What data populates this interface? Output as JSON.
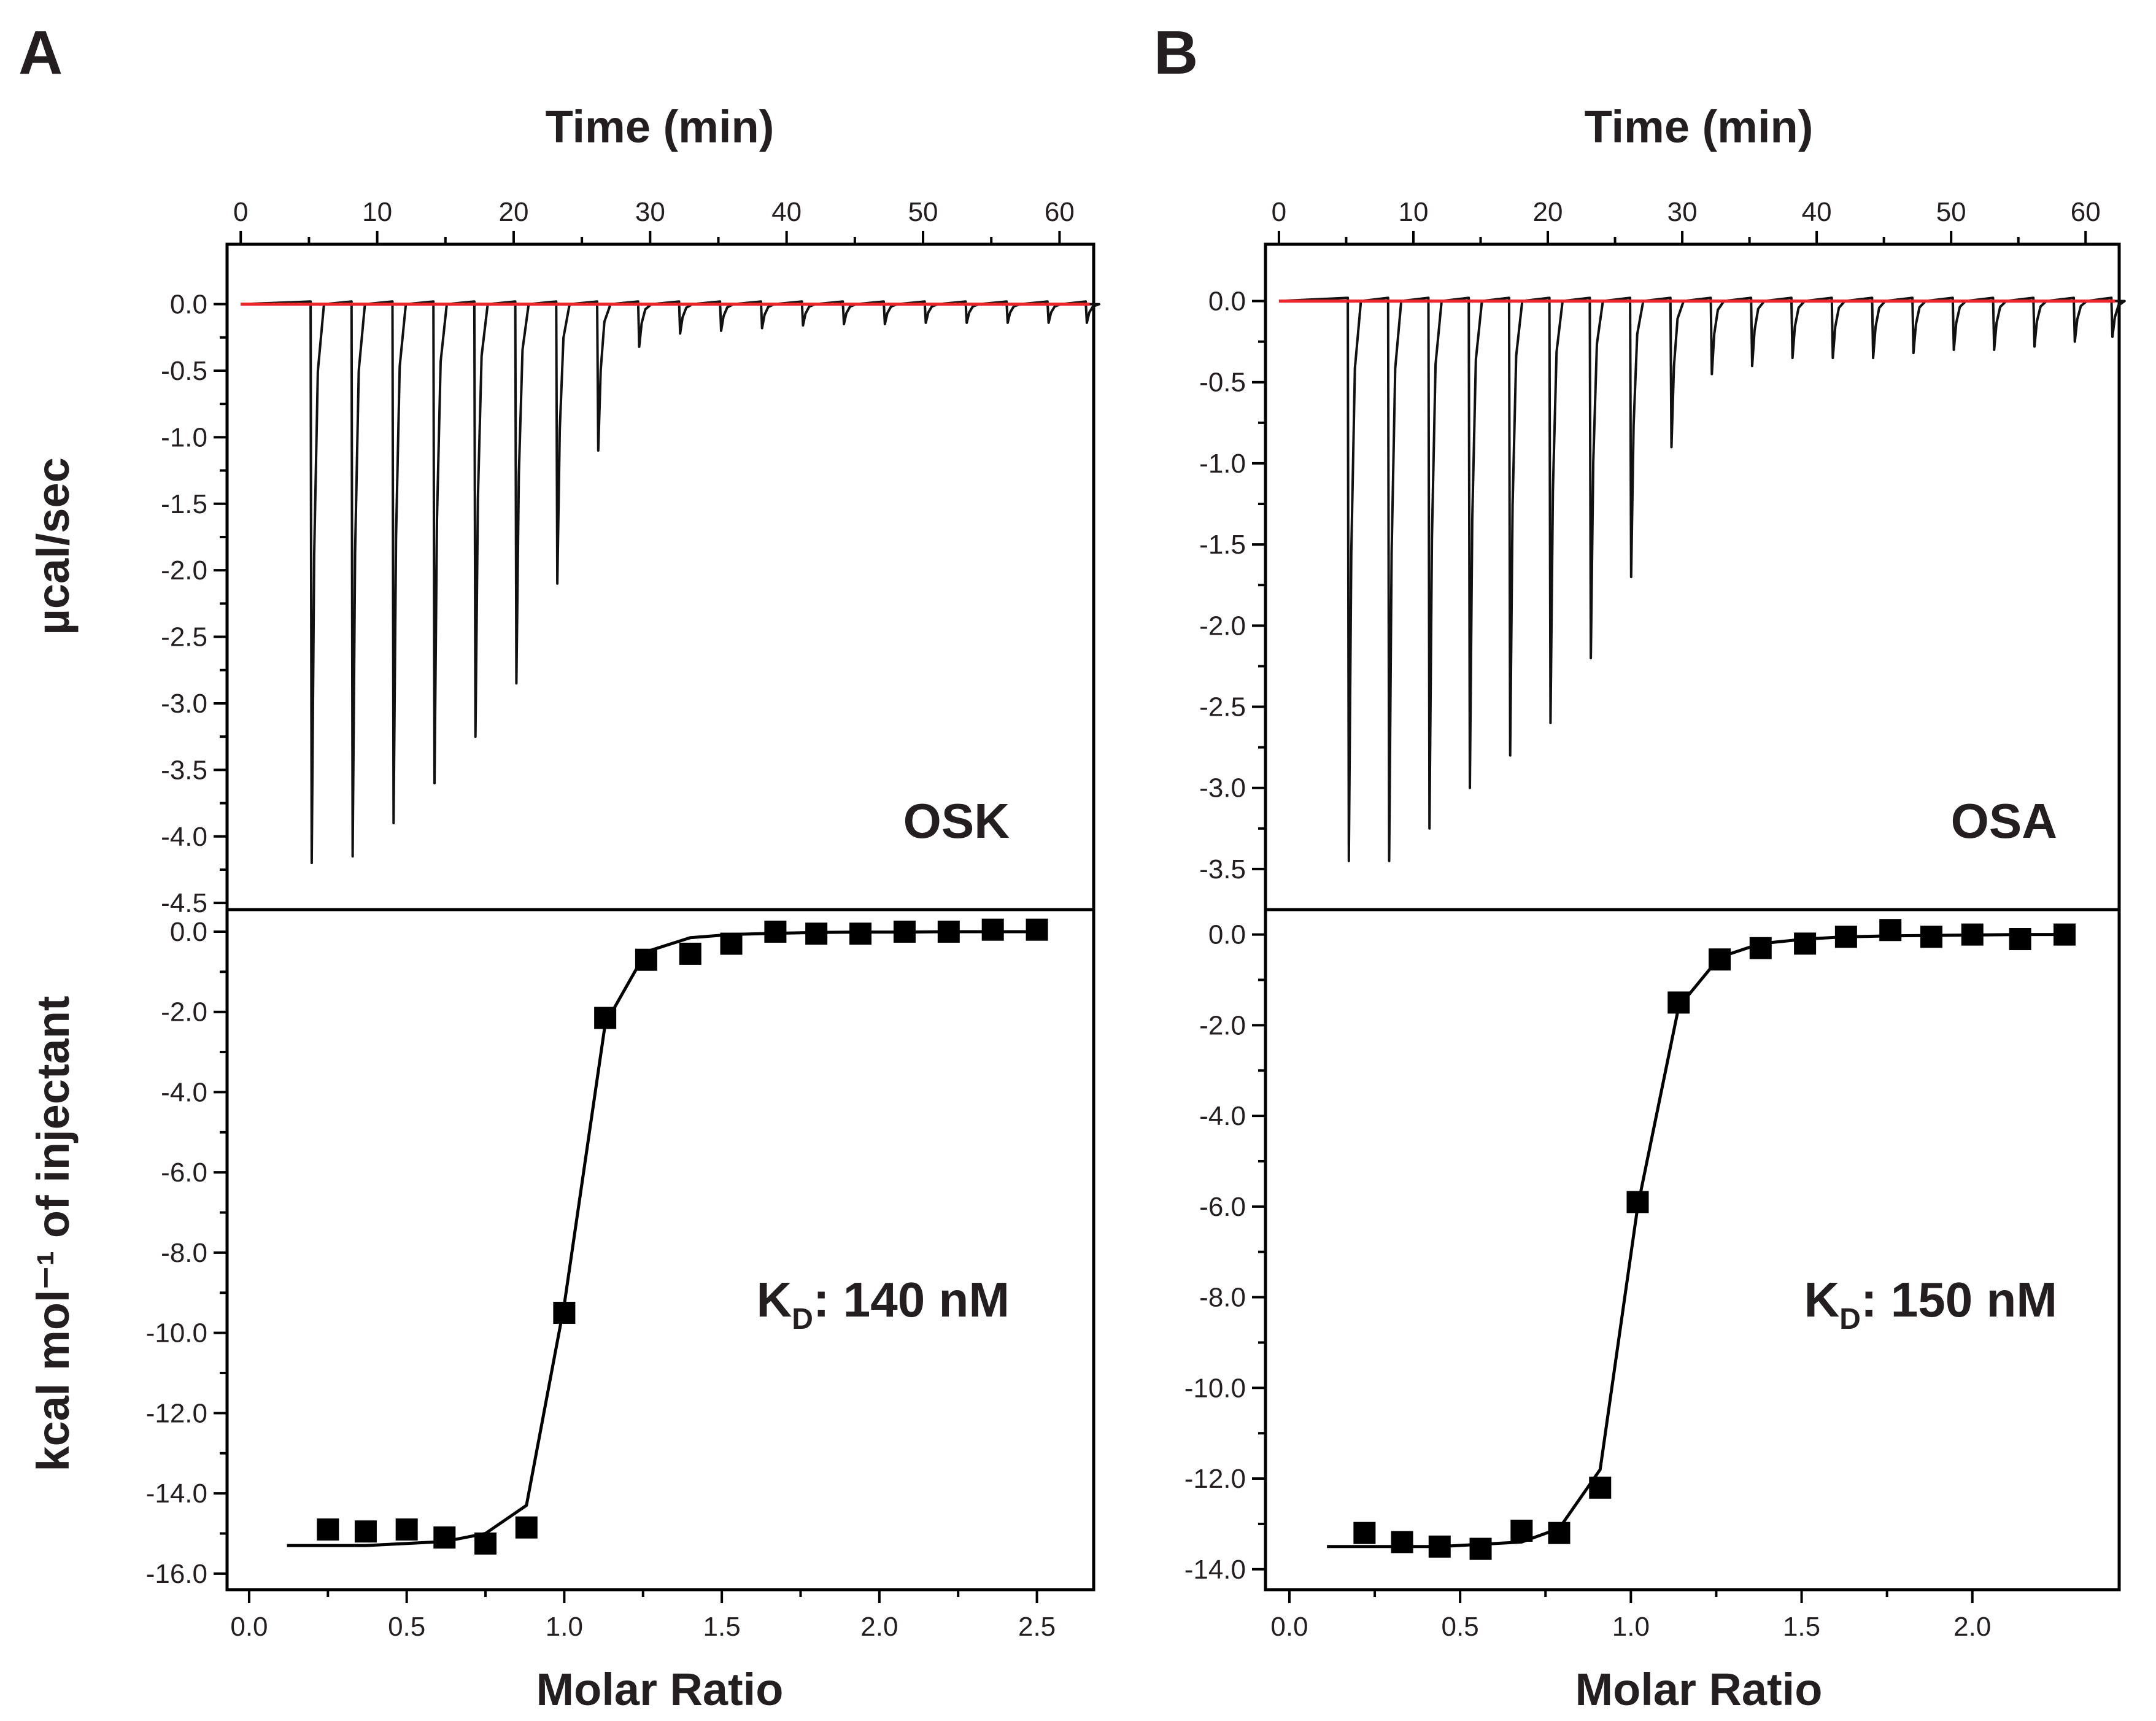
{
  "chart_data": [
    {
      "panel": "A",
      "sample_label": "OSK",
      "kd": {
        "symbol": "K",
        "subscript": "D",
        "value": ": 140 nM"
      },
      "top_xlabel": "Time (min)",
      "bottom_xlabel": "Molar Ratio",
      "thermogram": {
        "type": "line",
        "ylabel": "µcal/sec",
        "xlim": [
          -1,
          62.5
        ],
        "ylim": [
          -4.55,
          0.45
        ],
        "x_ticks": [
          0,
          10,
          20,
          30,
          40,
          50,
          60
        ],
        "x_tick_labels": [
          "0",
          "10",
          "20",
          "30",
          "40",
          "50",
          "60"
        ],
        "y_ticks": [
          0.0,
          -0.5,
          -1.0,
          -1.5,
          -2.0,
          -2.5,
          -3.0,
          -3.5,
          -4.0,
          -4.5
        ],
        "y_tick_labels": [
          "0.0",
          "-0.5",
          "-1.0",
          "-1.5",
          "-2.0",
          "-2.5",
          "-3.0",
          "-3.5",
          "-4.0",
          "-4.5"
        ],
        "baseline_color": "#e8262c",
        "trace_color": "#111111",
        "injection_times": [
          5.2,
          8.2,
          11.2,
          14.2,
          17.2,
          20.2,
          23.2,
          26.2,
          29.2,
          32.2,
          35.2,
          38.2,
          41.2,
          44.2,
          47.2,
          50.2,
          53.2,
          56.2,
          59.2,
          62.0
        ],
        "peak_minima": [
          -4.2,
          -4.15,
          -3.9,
          -3.6,
          -3.25,
          -2.85,
          -2.1,
          -1.1,
          -0.32,
          -0.22,
          -0.2,
          -0.18,
          -0.16,
          -0.15,
          -0.15,
          -0.14,
          -0.14,
          -0.14,
          -0.14,
          -0.14
        ]
      },
      "binding": {
        "type": "scatter",
        "ylabel": "kcal mol⁻¹ of injectant",
        "xlim": [
          -0.07,
          2.68
        ],
        "ylim": [
          -16.4,
          0.55
        ],
        "x_ticks": [
          0.0,
          0.5,
          1.0,
          1.5,
          2.0,
          2.5
        ],
        "x_tick_labels": [
          "0.0",
          "0.5",
          "1.0",
          "1.5",
          "2.0",
          "2.5"
        ],
        "y_ticks": [
          0.0,
          -2.0,
          -4.0,
          -6.0,
          -8.0,
          -10.0,
          -12.0,
          -14.0,
          -16.0
        ],
        "y_tick_labels": [
          "0.0",
          "-2.0",
          "-4.0",
          "-6.0",
          "-8.0",
          "-10.0",
          "-12.0",
          "-14.0",
          "-16.0"
        ],
        "points": {
          "x": [
            0.25,
            0.37,
            0.5,
            0.62,
            0.75,
            0.88,
            1.0,
            1.13,
            1.26,
            1.4,
            1.53,
            1.67,
            1.8,
            1.94,
            2.08,
            2.22,
            2.36,
            2.5
          ],
          "y": [
            -14.9,
            -14.95,
            -14.9,
            -15.1,
            -15.25,
            -14.85,
            -9.5,
            -2.15,
            -0.7,
            -0.55,
            -0.3,
            0.0,
            -0.05,
            -0.05,
            0.0,
            0.0,
            0.05,
            0.05
          ]
        },
        "fit": {
          "x": [
            0.12,
            0.25,
            0.37,
            0.5,
            0.62,
            0.75,
            0.88,
            1.0,
            1.13,
            1.26,
            1.4,
            1.53,
            1.67,
            1.8,
            1.94,
            2.08,
            2.22,
            2.36,
            2.5
          ],
          "y": [
            -15.3,
            -15.3,
            -15.3,
            -15.25,
            -15.2,
            -15.0,
            -14.3,
            -9.3,
            -2.3,
            -0.5,
            -0.15,
            -0.07,
            -0.04,
            -0.02,
            -0.01,
            -0.01,
            0.0,
            0.0,
            0.0
          ]
        }
      }
    },
    {
      "panel": "B",
      "sample_label": "OSA",
      "kd": {
        "symbol": "K",
        "subscript": "D",
        "value": ": 150 nM"
      },
      "top_xlabel": "Time (min)",
      "bottom_xlabel": "Molar Ratio",
      "thermogram": {
        "type": "line",
        "ylabel": "",
        "xlim": [
          -1,
          62.5
        ],
        "ylim": [
          -3.75,
          0.35
        ],
        "x_ticks": [
          0,
          10,
          20,
          30,
          40,
          50,
          60
        ],
        "x_tick_labels": [
          "0",
          "10",
          "20",
          "30",
          "40",
          "50",
          "60"
        ],
        "y_ticks": [
          0.0,
          -0.5,
          -1.0,
          -1.5,
          -2.0,
          -2.5,
          -3.0,
          -3.5
        ],
        "y_tick_labels": [
          "0.0",
          "-0.5",
          "-1.0",
          "-1.5",
          "-2.0",
          "-2.5",
          "-3.0",
          "-3.5"
        ],
        "baseline_color": "#e8262c",
        "trace_color": "#111111",
        "injection_times": [
          5.2,
          8.2,
          11.2,
          14.2,
          17.2,
          20.2,
          23.2,
          26.2,
          29.2,
          32.2,
          35.2,
          38.2,
          41.2,
          44.2,
          47.2,
          50.2,
          53.2,
          56.2,
          59.2,
          62.0
        ],
        "peak_minima": [
          -3.45,
          -3.45,
          -3.25,
          -3.0,
          -2.8,
          -2.6,
          -2.2,
          -1.7,
          -0.9,
          -0.45,
          -0.4,
          -0.35,
          -0.35,
          -0.35,
          -0.32,
          -0.3,
          -0.3,
          -0.28,
          -0.25,
          -0.22
        ]
      },
      "binding": {
        "type": "scatter",
        "ylabel": "",
        "xlim": [
          -0.07,
          2.43
        ],
        "ylim": [
          -14.45,
          0.55
        ],
        "x_ticks": [
          0.0,
          0.5,
          1.0,
          1.5,
          2.0
        ],
        "x_tick_labels": [
          "0.0",
          "0.5",
          "1.0",
          "1.5",
          "2.0"
        ],
        "y_ticks": [
          0.0,
          -2.0,
          -4.0,
          -6.0,
          -8.0,
          -10.0,
          -12.0,
          -14.0
        ],
        "y_tick_labels": [
          "0.0",
          "-2.0",
          "-4.0",
          "-6.0",
          "-8.0",
          "-10.0",
          "-12.0",
          "-14.0"
        ],
        "points": {
          "x": [
            0.22,
            0.33,
            0.44,
            0.56,
            0.68,
            0.79,
            0.91,
            1.02,
            1.14,
            1.26,
            1.38,
            1.51,
            1.63,
            1.76,
            1.88,
            2.0,
            2.14,
            2.27
          ],
          "y": [
            -13.2,
            -13.4,
            -13.5,
            -13.55,
            -13.15,
            -13.2,
            -12.2,
            -5.9,
            -1.5,
            -0.55,
            -0.3,
            -0.2,
            -0.05,
            0.1,
            -0.05,
            0.0,
            -0.1,
            0.0
          ]
        },
        "fit": {
          "x": [
            0.11,
            0.22,
            0.33,
            0.44,
            0.56,
            0.68,
            0.79,
            0.91,
            1.02,
            1.14,
            1.26,
            1.38,
            1.51,
            1.63,
            1.76,
            1.88,
            2.0,
            2.14,
            2.27
          ],
          "y": [
            -13.5,
            -13.5,
            -13.5,
            -13.5,
            -13.45,
            -13.4,
            -13.1,
            -11.8,
            -6.0,
            -1.6,
            -0.5,
            -0.2,
            -0.1,
            -0.05,
            -0.03,
            -0.02,
            -0.01,
            0.0,
            0.0
          ]
        }
      }
    }
  ]
}
